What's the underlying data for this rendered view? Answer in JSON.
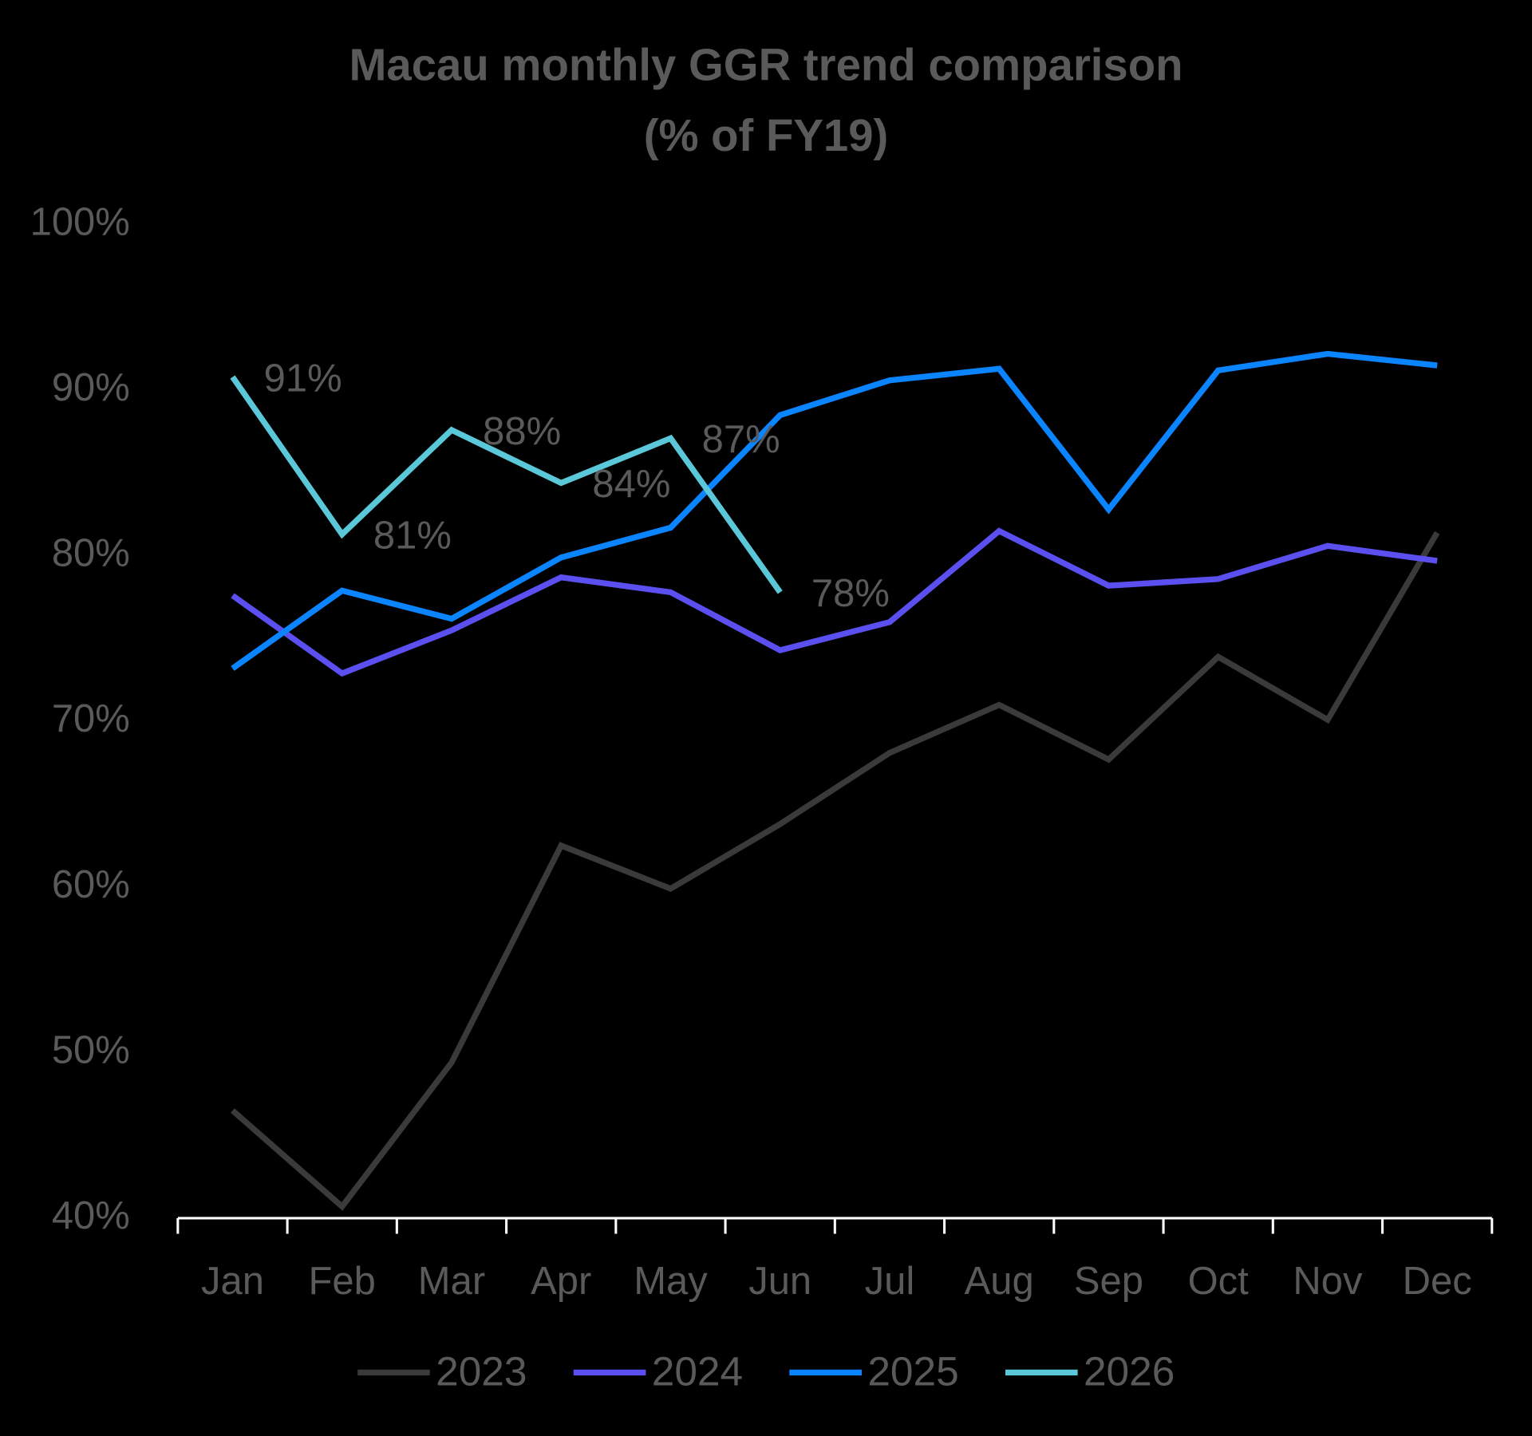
{
  "chart_data": {
    "type": "line",
    "title": "Macau monthly GGR trend comparison",
    "subtitle": "(% of FY19)",
    "categories": [
      "Jan",
      "Feb",
      "Mar",
      "Apr",
      "May",
      "Jun",
      "Jul",
      "Aug",
      "Sep",
      "Oct",
      "Nov",
      "Dec"
    ],
    "series": [
      {
        "name": "2023",
        "color": "#3a3a3a",
        "values": [
          46.5,
          40.7,
          49.4,
          62.5,
          59.9,
          63.8,
          68.1,
          71.0,
          67.7,
          73.9,
          70.1,
          81.4
        ]
      },
      {
        "name": "2024",
        "color": "#5b4ff0",
        "values": [
          77.6,
          72.9,
          75.5,
          78.7,
          77.8,
          74.3,
          76.0,
          81.5,
          78.2,
          78.6,
          80.6,
          79.7
        ]
      },
      {
        "name": "2025",
        "color": "#0a84ff",
        "values": [
          73.2,
          77.9,
          76.2,
          79.9,
          81.7,
          88.5,
          90.6,
          91.3,
          82.8,
          91.2,
          92.2,
          91.5
        ]
      },
      {
        "name": "2026",
        "color": "#5ac8d8",
        "values": [
          90.8,
          81.3,
          87.6,
          84.4,
          87.1,
          77.8,
          null,
          null,
          null,
          null,
          null,
          null
        ],
        "value_labels": [
          "91%",
          "81%",
          "88%",
          "84%",
          "87%",
          "78%",
          null,
          null,
          null,
          null,
          null,
          null
        ]
      }
    ],
    "ylim": [
      40,
      100
    ],
    "yticks": [
      {
        "value": 40,
        "label": "40%"
      },
      {
        "value": 50,
        "label": "50%"
      },
      {
        "value": 60,
        "label": "60%"
      },
      {
        "value": 70,
        "label": "70%"
      },
      {
        "value": 80,
        "label": "80%"
      },
      {
        "value": 90,
        "label": "90%"
      },
      {
        "value": 100,
        "label": "100%"
      }
    ],
    "grid": false,
    "legend": "bottom"
  }
}
